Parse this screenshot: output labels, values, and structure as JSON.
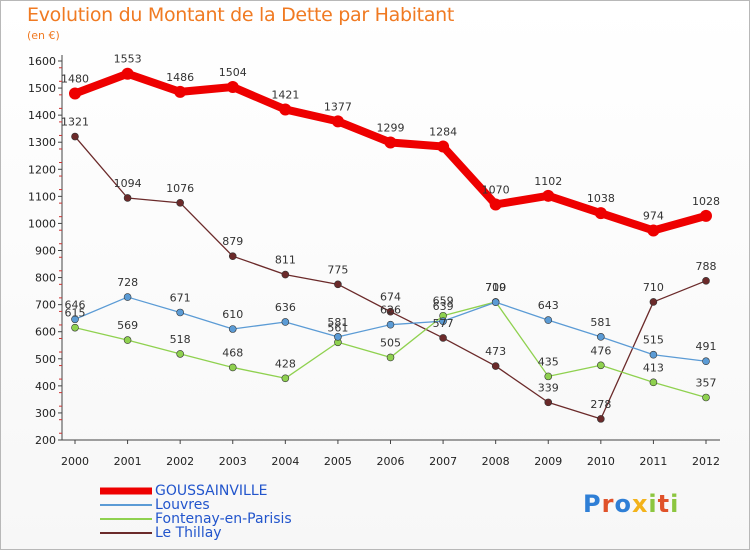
{
  "title": "Evolution du Montant de la Dette par Habitant",
  "subtitle": "(en €)",
  "logo": {
    "text": "Proxiti",
    "letter_colors": [
      "#2f7fd6",
      "#e0522a",
      "#2f7fd6",
      "#f3b31b",
      "#8cc63f",
      "#e0522a",
      "#8cc63f"
    ]
  },
  "chart_data": {
    "type": "line",
    "title": "Evolution du Montant de la Dette par Habitant",
    "subtitle": "(en €)",
    "xlabel": "",
    "ylabel": "",
    "x": [
      "2000",
      "2001",
      "2002",
      "2003",
      "2004",
      "2005",
      "2006",
      "2007",
      "2008",
      "2009",
      "2010",
      "2011",
      "2012"
    ],
    "ylim": [
      200,
      1600
    ],
    "yticks": [
      200,
      300,
      400,
      500,
      600,
      700,
      800,
      900,
      1000,
      1100,
      1200,
      1300,
      1400,
      1500,
      1600
    ],
    "grid": false,
    "legend_position": "bottom-left",
    "series": [
      {
        "name": "GOUSSAINVILLE",
        "color": "#ee0000",
        "values": [
          1480,
          1553,
          1486,
          1504,
          1421,
          1377,
          1299,
          1284,
          1070,
          1102,
          1038,
          974,
          1028
        ]
      },
      {
        "name": "Louvres",
        "color": "#5b9bd5",
        "values": [
          646,
          728,
          671,
          610,
          636,
          581,
          626,
          639,
          709,
          643,
          581,
          515,
          491
        ]
      },
      {
        "name": "Fontenay-en-Parisis",
        "color": "#8fd14f",
        "values": [
          615,
          569,
          518,
          468,
          428,
          561,
          505,
          659,
          710,
          435,
          476,
          413,
          357
        ]
      },
      {
        "name": "Le Thillay",
        "color": "#6b2a2a",
        "values": [
          1321,
          1094,
          1076,
          879,
          811,
          775,
          674,
          577,
          473,
          339,
          278,
          710,
          788
        ]
      }
    ],
    "point_labels": [
      [
        "1480",
        "1553",
        "1486",
        "1504",
        "1421",
        "1377",
        "1299",
        "1284",
        "1070",
        "1102",
        "1038",
        "974",
        "1028"
      ],
      [
        "646",
        "728",
        "671",
        "610",
        "636",
        "581",
        "626",
        "639",
        "709",
        "643",
        "581",
        "515",
        "491"
      ],
      [
        "615",
        "569",
        "518",
        "468",
        "428",
        "561",
        "505",
        "659",
        "710",
        "435",
        "476",
        "413",
        "357"
      ],
      [
        "1321",
        "1094",
        "1076",
        "879",
        "811",
        "775",
        "674",
        "577",
        "473",
        "339",
        "278",
        "710",
        "788"
      ]
    ]
  }
}
